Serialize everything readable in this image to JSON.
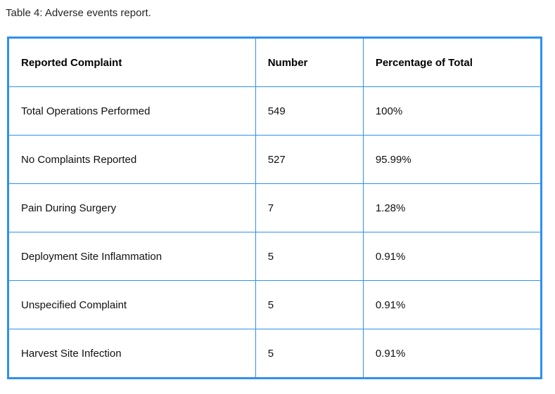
{
  "caption": "Table 4: Adverse events report.",
  "colors": {
    "table_border": "#2e90f2",
    "text": "#101010",
    "background": "#ffffff"
  },
  "table": {
    "headers": [
      "Reported Complaint",
      "Number",
      "Percentage of Total"
    ],
    "rows": [
      [
        "Total Operations Performed",
        "549",
        "100%"
      ],
      [
        "No Complaints Reported",
        "527",
        "95.99%"
      ],
      [
        "Pain During Surgery",
        "7",
        "1.28%"
      ],
      [
        "Deployment Site Inflammation",
        "5",
        "0.91%"
      ],
      [
        "Unspecified Complaint",
        "5",
        "0.91%"
      ],
      [
        "Harvest Site Infection",
        "5",
        "0.91%"
      ]
    ]
  }
}
